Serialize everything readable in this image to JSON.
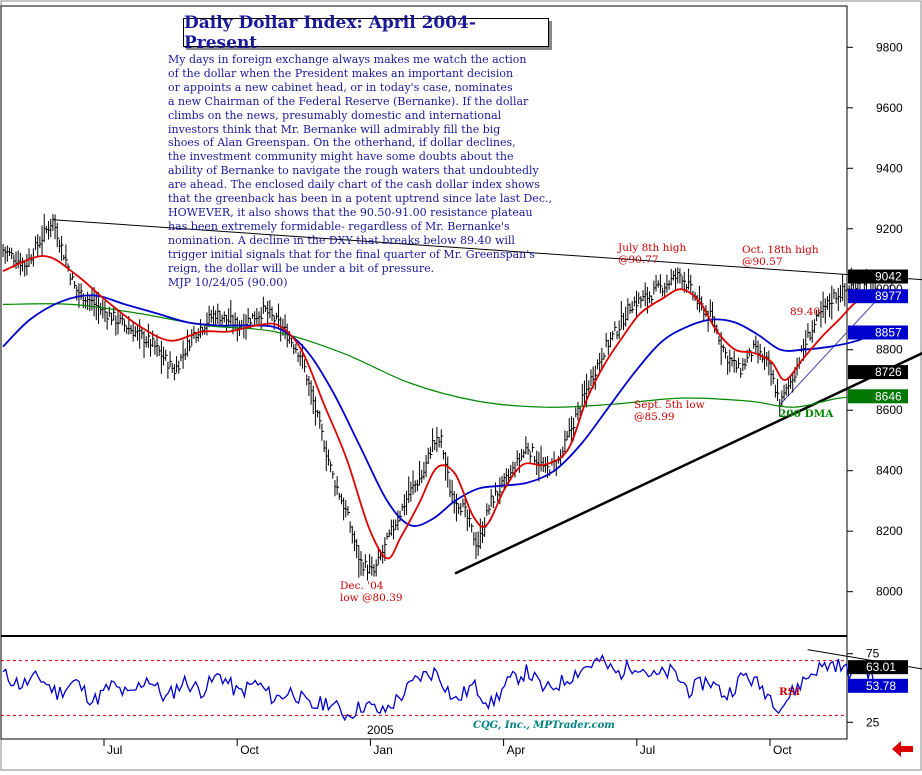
{
  "title": "Daily Dollar Index: April 2004-Present",
  "commentary": [
    "My days in foreign exchange always makes me watch the action",
    "of the dollar when the President makes an important decision",
    "or appoints a new cabinet head, or in today's case, nominates",
    "a new Chairman of the Federal Reserve (Bernanke). If the dollar",
    "climbs on the news, presumably domestic and international",
    "investors think that Mr. Bernanke will admirably fill the big",
    "shoes of Alan Greenspan. On the otherhand, if dollar declines,",
    "the investment community might have some doubts about the",
    "ability of Bernanke to navigate the rough waters that undoubtedly",
    "are ahead. The enclosed daily chart of the cash dollar index shows",
    "that the greenback has been in a potent uptrend since late last Dec.,",
    "HOWEVER, it also shows that the 90.50-91.00 resistance plateau",
    "has been extremely formidable- regardless of Mr. Bernanke's",
    "nomination. A decline in the DXY that breaks below 89.40 will",
    "trigger initial signals that for the final quarter of Mr. Greenspan's",
    "reign, the dollar will be under a bit of pressure.",
    "MJP 10/24/05 (90.00)"
  ],
  "annotations": {
    "july_high": "July 8th high\n@90.77",
    "oct_high": "Oct. 18th high\n@90.57",
    "support": "89.40",
    "sept_low": "Sept. 5th low\n@85.99",
    "dec_low": "Dec. '04\nlow @80.39",
    "dma": "200 DMA",
    "rsi": "RSI"
  },
  "credit": "CQG, Inc., MPTrader.com",
  "year_label": "2005",
  "price_boxes": [
    {
      "value": "9042",
      "bg": "#000000",
      "fg": "#ffffff"
    },
    {
      "value": "8977",
      "bg": "#0000cc",
      "fg": "#ffffff"
    },
    {
      "value": "8857",
      "bg": "#0000cc",
      "fg": "#ffffff"
    },
    {
      "value": "8726",
      "bg": "#000000",
      "fg": "#ffffff"
    },
    {
      "value": "8646",
      "bg": "#007700",
      "fg": "#ffffff"
    }
  ],
  "rsi_boxes": [
    {
      "value": "63.01",
      "bg": "#000000",
      "fg": "#ffffff"
    },
    {
      "value": "53.78",
      "bg": "#0000cc",
      "fg": "#ffffff"
    }
  ],
  "colors": {
    "price": "#000000",
    "ma_short": "#dd0000",
    "ma_mid": "#0000cc",
    "dma200": "#008800",
    "rsi": "#0000cc",
    "text": "#1a1a99"
  },
  "chart_data": [
    {
      "type": "line",
      "title": "Daily Dollar Index: April 2004-Present",
      "y_ticks": [
        8000,
        8200,
        8400,
        8600,
        8800,
        9000,
        9200,
        9400,
        9600,
        9800
      ],
      "ylim": [
        7860,
        9930
      ],
      "x_ticks": [
        "Jul",
        "Oct",
        "Jan",
        "Apr",
        "Jul",
        "Oct"
      ],
      "x_tick_month_index": [
        3,
        6,
        9,
        12,
        15,
        18
      ],
      "x_range_months": [
        0,
        20.8
      ],
      "price_points": [
        [
          0.0,
          9130
        ],
        [
          0.5,
          9080
        ],
        [
          1.1,
          9230
        ],
        [
          1.6,
          9000
        ],
        [
          2.2,
          8930
        ],
        [
          2.8,
          8870
        ],
        [
          3.3,
          8820
        ],
        [
          3.8,
          8730
        ],
        [
          4.2,
          8850
        ],
        [
          4.7,
          8920
        ],
        [
          5.2,
          8880
        ],
        [
          5.8,
          8930
        ],
        [
          6.2,
          8870
        ],
        [
          6.6,
          8780
        ],
        [
          7.0,
          8550
        ],
        [
          7.3,
          8380
        ],
        [
          7.6,
          8260
        ],
        [
          7.9,
          8100
        ],
        [
          8.2,
          8060
        ],
        [
          8.6,
          8200
        ],
        [
          9.0,
          8330
        ],
        [
          9.3,
          8390
        ],
        [
          9.5,
          8490
        ],
        [
          9.7,
          8500
        ],
        [
          9.9,
          8330
        ],
        [
          10.2,
          8270
        ],
        [
          10.5,
          8150
        ],
        [
          10.8,
          8300
        ],
        [
          11.2,
          8380
        ],
        [
          11.6,
          8480
        ],
        [
          12.0,
          8400
        ],
        [
          12.3,
          8430
        ],
        [
          12.6,
          8550
        ],
        [
          13.0,
          8700
        ],
        [
          13.3,
          8800
        ],
        [
          13.6,
          8870
        ],
        [
          13.9,
          8950
        ],
        [
          14.2,
          8970
        ],
        [
          14.6,
          9010
        ],
        [
          15.0,
          9050
        ],
        [
          15.4,
          8950
        ],
        [
          15.7,
          8900
        ],
        [
          16.0,
          8780
        ],
        [
          16.3,
          8730
        ],
        [
          16.6,
          8800
        ],
        [
          16.9,
          8760
        ],
        [
          17.2,
          8620
        ],
        [
          17.5,
          8720
        ],
        [
          17.8,
          8840
        ],
        [
          18.1,
          8920
        ],
        [
          18.4,
          8980
        ],
        [
          18.7,
          9000
        ],
        [
          19.0,
          9040
        ],
        [
          19.3,
          9000
        ]
      ],
      "ma_short_points": [
        [
          0.0,
          9060
        ],
        [
          0.9,
          9110
        ],
        [
          1.6,
          9050
        ],
        [
          2.3,
          8960
        ],
        [
          3.0,
          8880
        ],
        [
          3.7,
          8830
        ],
        [
          4.4,
          8860
        ],
        [
          5.0,
          8860
        ],
        [
          5.6,
          8880
        ],
        [
          6.1,
          8880
        ],
        [
          6.6,
          8800
        ],
        [
          7.1,
          8620
        ],
        [
          7.6,
          8440
        ],
        [
          8.1,
          8210
        ],
        [
          8.5,
          8110
        ],
        [
          8.8,
          8180
        ],
        [
          9.2,
          8290
        ],
        [
          9.6,
          8410
        ],
        [
          10.0,
          8390
        ],
        [
          10.4,
          8250
        ],
        [
          10.7,
          8220
        ],
        [
          11.1,
          8340
        ],
        [
          11.5,
          8420
        ],
        [
          12.0,
          8420
        ],
        [
          12.5,
          8470
        ],
        [
          12.9,
          8630
        ],
        [
          13.3,
          8750
        ],
        [
          13.7,
          8840
        ],
        [
          14.1,
          8920
        ],
        [
          14.6,
          8970
        ],
        [
          15.0,
          9000
        ],
        [
          15.4,
          8960
        ],
        [
          15.8,
          8860
        ],
        [
          16.2,
          8800
        ],
        [
          16.6,
          8790
        ],
        [
          17.0,
          8760
        ],
        [
          17.3,
          8700
        ],
        [
          17.7,
          8770
        ],
        [
          18.1,
          8840
        ],
        [
          18.5,
          8900
        ],
        [
          18.9,
          8960
        ],
        [
          19.3,
          8977
        ]
      ],
      "ma_mid_points": [
        [
          0.0,
          8810
        ],
        [
          0.6,
          8900
        ],
        [
          1.3,
          8960
        ],
        [
          2.0,
          8980
        ],
        [
          2.7,
          8950
        ],
        [
          3.4,
          8920
        ],
        [
          4.1,
          8890
        ],
        [
          4.8,
          8880
        ],
        [
          5.5,
          8880
        ],
        [
          6.1,
          8870
        ],
        [
          6.7,
          8800
        ],
        [
          7.3,
          8660
        ],
        [
          7.9,
          8480
        ],
        [
          8.5,
          8300
        ],
        [
          9.0,
          8220
        ],
        [
          9.5,
          8240
        ],
        [
          10.0,
          8300
        ],
        [
          10.5,
          8340
        ],
        [
          11.0,
          8350
        ],
        [
          11.6,
          8360
        ],
        [
          12.2,
          8400
        ],
        [
          12.8,
          8490
        ],
        [
          13.4,
          8610
        ],
        [
          14.0,
          8730
        ],
        [
          14.6,
          8830
        ],
        [
          15.2,
          8880
        ],
        [
          15.7,
          8900
        ],
        [
          16.2,
          8890
        ],
        [
          16.7,
          8850
        ],
        [
          17.2,
          8800
        ],
        [
          17.7,
          8800
        ],
        [
          18.3,
          8810
        ],
        [
          18.9,
          8830
        ],
        [
          19.3,
          8857
        ]
      ],
      "dma200_points": [
        [
          0.0,
          8950
        ],
        [
          1.5,
          8950
        ],
        [
          3.0,
          8920
        ],
        [
          4.5,
          8880
        ],
        [
          6.0,
          8860
        ],
        [
          7.5,
          8790
        ],
        [
          9.0,
          8690
        ],
        [
          10.5,
          8630
        ],
        [
          12.0,
          8610
        ],
        [
          13.5,
          8620
        ],
        [
          15.0,
          8640
        ],
        [
          16.5,
          8630
        ],
        [
          17.5,
          8610
        ],
        [
          18.5,
          8640
        ],
        [
          19.3,
          8646
        ]
      ],
      "resistance_line": [
        [
          1.1,
          9230
        ],
        [
          20.5,
          9030
        ]
      ],
      "support_line": [
        [
          10.0,
          8060
        ],
        [
          20.5,
          8800
        ]
      ],
      "short_trend_line": [
        [
          17.2,
          8620
        ],
        [
          19.8,
          9040
        ]
      ]
    },
    {
      "type": "line",
      "title": "RSI",
      "y_ticks": [
        25,
        75
      ],
      "ylim": [
        15,
        85
      ],
      "levels": [
        70,
        30
      ],
      "rsi_points": [
        [
          0.0,
          60
        ],
        [
          0.4,
          52
        ],
        [
          0.8,
          58
        ],
        [
          1.2,
          46
        ],
        [
          1.6,
          55
        ],
        [
          2.0,
          40
        ],
        [
          2.4,
          52
        ],
        [
          2.8,
          44
        ],
        [
          3.2,
          58
        ],
        [
          3.6,
          42
        ],
        [
          4.0,
          55
        ],
        [
          4.4,
          48
        ],
        [
          4.8,
          60
        ],
        [
          5.2,
          46
        ],
        [
          5.6,
          54
        ],
        [
          6.0,
          42
        ],
        [
          6.4,
          48
        ],
        [
          6.8,
          36
        ],
        [
          7.2,
          40
        ],
        [
          7.6,
          30
        ],
        [
          8.0,
          38
        ],
        [
          8.4,
          32
        ],
        [
          8.8,
          44
        ],
        [
          9.2,
          58
        ],
        [
          9.6,
          62
        ],
        [
          10.0,
          40
        ],
        [
          10.4,
          52
        ],
        [
          10.8,
          38
        ],
        [
          11.2,
          55
        ],
        [
          11.6,
          62
        ],
        [
          12.0,
          48
        ],
        [
          12.4,
          55
        ],
        [
          12.8,
          64
        ],
        [
          13.2,
          70
        ],
        [
          13.6,
          60
        ],
        [
          14.0,
          68
        ],
        [
          14.4,
          58
        ],
        [
          14.8,
          62
        ],
        [
          15.2,
          48
        ],
        [
          15.6,
          56
        ],
        [
          16.0,
          44
        ],
        [
          16.4,
          60
        ],
        [
          16.8,
          50
        ],
        [
          17.2,
          36
        ],
        [
          17.6,
          52
        ],
        [
          18.0,
          64
        ],
        [
          18.4,
          68
        ],
        [
          18.8,
          60
        ],
        [
          19.0,
          70
        ],
        [
          19.3,
          54
        ]
      ],
      "rsi_trend_line": [
        [
          17.8,
          78
        ],
        [
          20.5,
          63
        ]
      ]
    }
  ]
}
